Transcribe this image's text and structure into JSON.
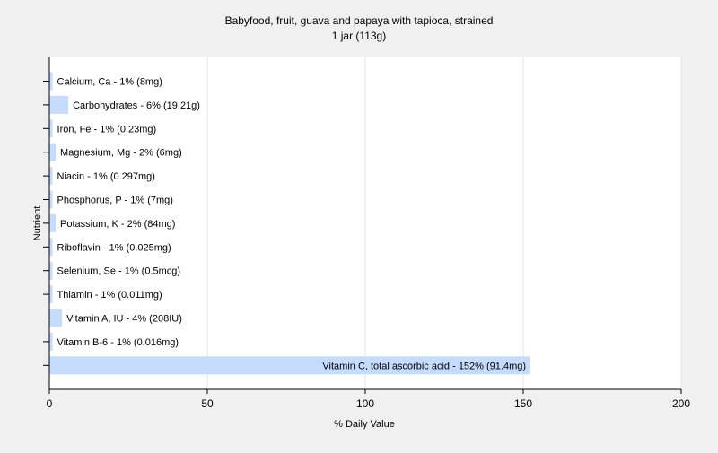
{
  "chart_data": {
    "type": "bar",
    "orientation": "horizontal",
    "title": "Babyfood, fruit, guava and papaya with tapioca, strained",
    "subtitle": "1 jar (113g)",
    "xlabel": "% Daily Value",
    "ylabel": "Nutrient",
    "xlim": [
      0,
      200
    ],
    "xticks": [
      0,
      50,
      100,
      150,
      200
    ],
    "grid": "vertical",
    "bar_color": "#c5dcfc",
    "categories": [
      "Calcium, Ca - 1% (8mg)",
      "Carbohydrates - 6% (19.21g)",
      "Iron, Fe - 1% (0.23mg)",
      "Magnesium, Mg - 2% (6mg)",
      "Niacin - 1% (0.297mg)",
      "Phosphorus, P - 1% (7mg)",
      "Potassium, K - 2% (84mg)",
      "Riboflavin - 1% (0.025mg)",
      "Selenium, Se - 1% (0.5mcg)",
      "Thiamin - 1% (0.011mg)",
      "Vitamin A, IU - 4% (208IU)",
      "Vitamin B-6 - 1% (0.016mg)",
      "Vitamin C, total ascorbic acid - 152% (91.4mg)"
    ],
    "values": [
      1,
      6,
      1,
      2,
      1,
      1,
      2,
      1,
      1,
      1,
      4,
      1,
      152
    ]
  }
}
